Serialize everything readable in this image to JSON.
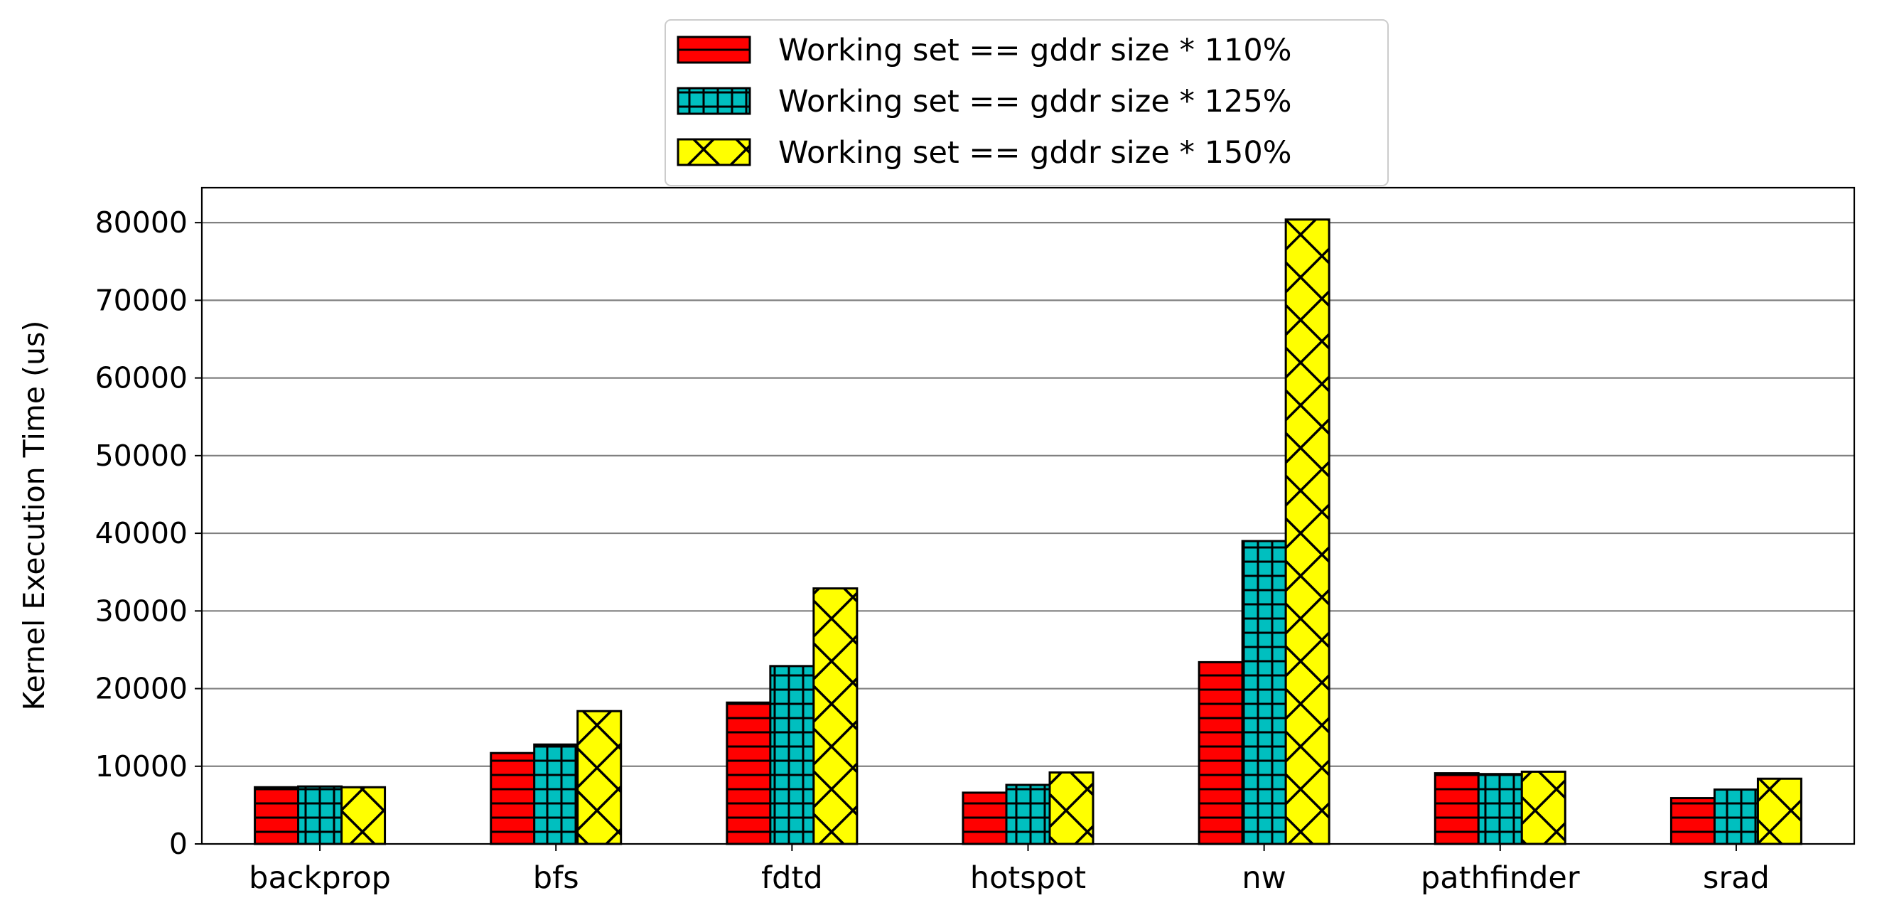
{
  "chart_data": {
    "type": "bar",
    "title": "",
    "xlabel": "",
    "ylabel": "Kernel Execution Time (us)",
    "categories": [
      "backprop",
      "bfs",
      "fdtd",
      "hotspot",
      "nw",
      "pathfinder",
      "srad"
    ],
    "series": [
      {
        "name": "Working set == gddr size * 110%",
        "color": "#ff0000",
        "hatch": "horizontal-lines",
        "values": [
          7300,
          11700,
          18200,
          6600,
          23400,
          9100,
          5900
        ]
      },
      {
        "name": "Working set == gddr size * 125%",
        "color": "#00bfbf",
        "hatch": "grid",
        "values": [
          7400,
          12800,
          22900,
          7600,
          39000,
          9000,
          7000
        ]
      },
      {
        "name": "Working set == gddr size * 150%",
        "color": "#ffff00",
        "hatch": "cross-diagonal",
        "values": [
          7300,
          17100,
          32900,
          9200,
          80400,
          9300,
          8400
        ]
      }
    ],
    "ylim": [
      0,
      84500
    ],
    "yticks": [
      0,
      10000,
      20000,
      30000,
      40000,
      50000,
      60000,
      70000,
      80000
    ],
    "grid": "horizontal",
    "legend_position": "top-center"
  }
}
